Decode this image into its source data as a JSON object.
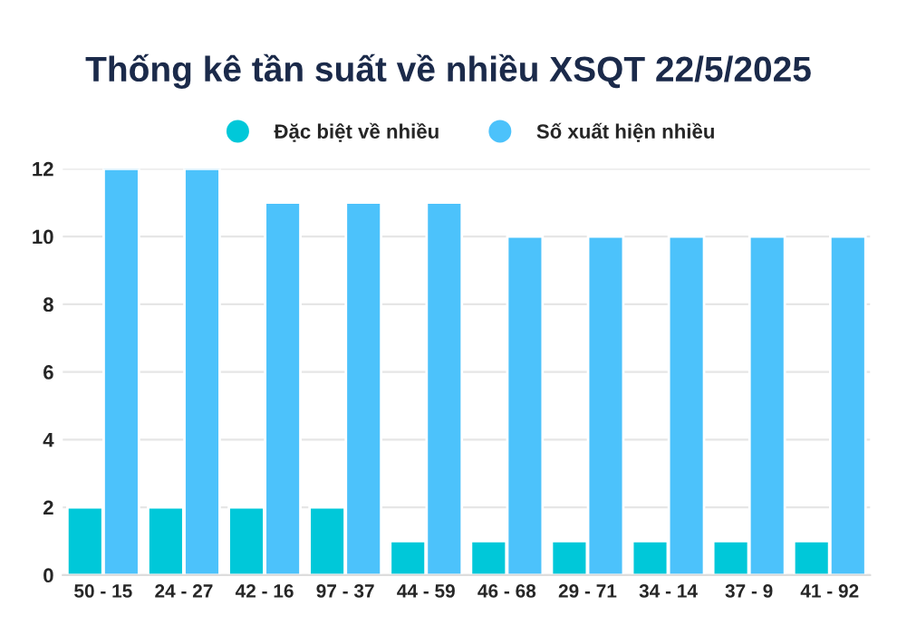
{
  "chart_data": {
    "type": "bar",
    "title": "Thống kê tần suất về nhiều XSQT 22/5/2025",
    "categories": [
      "50 - 15",
      "24 - 27",
      "42 - 16",
      "97 - 37",
      "44 - 59",
      "46 - 68",
      "29 - 71",
      "34 - 14",
      "37 - 9",
      "41 - 92"
    ],
    "series": [
      {
        "name": "Đặc biệt về nhiều",
        "color": "#00c8d9",
        "values": [
          2,
          2,
          2,
          2,
          1,
          1,
          1,
          1,
          1,
          1
        ]
      },
      {
        "name": "Số xuất hiện nhiều",
        "color": "#4cc2fb",
        "values": [
          12,
          12,
          11,
          11,
          11,
          10,
          10,
          10,
          10,
          10
        ]
      }
    ],
    "ylim": [
      0,
      12
    ],
    "yticks": [
      0,
      2,
      4,
      6,
      8,
      10,
      12
    ],
    "grid": "y",
    "legend": "top"
  }
}
